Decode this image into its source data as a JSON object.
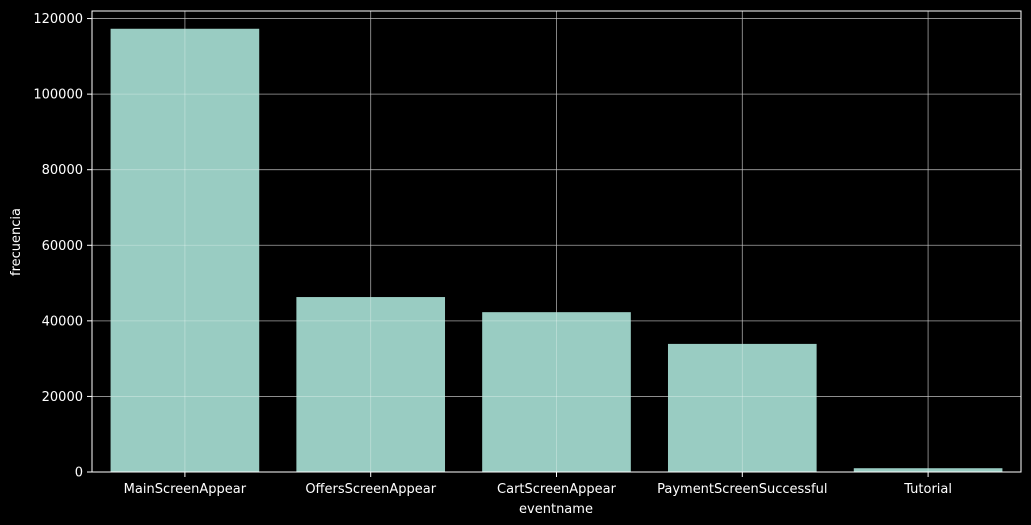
{
  "chart_data": {
    "type": "bar",
    "title": "",
    "xlabel": "eventname",
    "ylabel": "frecuencia",
    "categories": [
      "MainScreenAppear",
      "OffersScreenAppear",
      "CartScreenAppear",
      "PaymentScreenSuccessful",
      "Tutorial"
    ],
    "values": [
      117300,
      46300,
      42300,
      33900,
      1000
    ],
    "ylim": [
      0,
      122000
    ],
    "yticks": [
      0,
      20000,
      40000,
      60000,
      80000,
      100000,
      120000
    ],
    "grid": true,
    "colors": {
      "background": "#000000",
      "bar": "#99CCC2",
      "grid": "#6b6b6b",
      "axis": "#ffffff",
      "text": "#ffffff"
    }
  }
}
